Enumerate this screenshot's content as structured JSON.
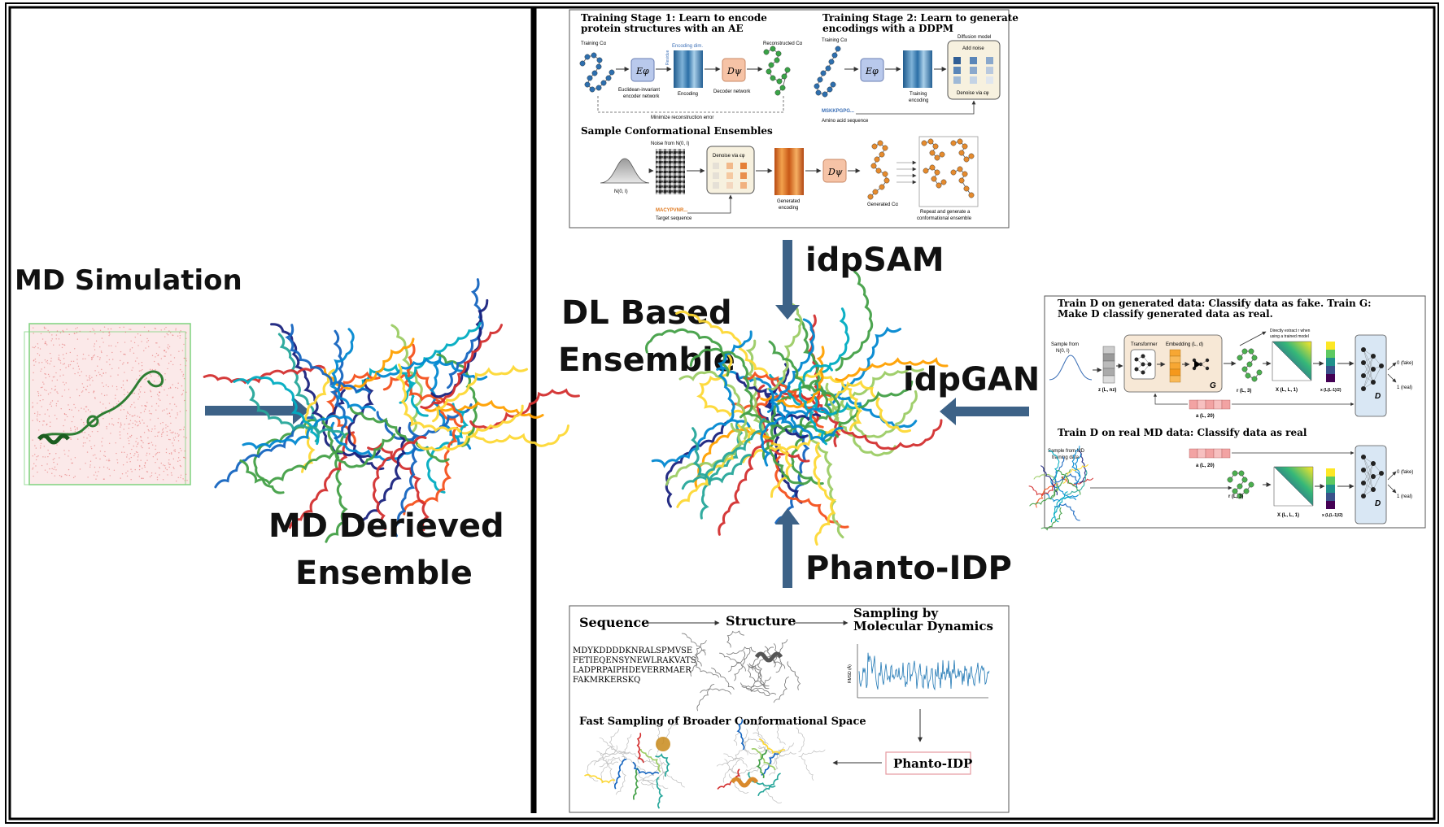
{
  "labels": {
    "md_simulation": "MD Simulation",
    "md_derived_1": "MD Derieved",
    "md_derived_2": "Ensemble",
    "dl_based_1": "DL Based",
    "dl_based_2": "Ensemble",
    "idpsam": "idpSAM",
    "idpgan": "idpGAN",
    "phanto": "Phanto-IDP"
  },
  "idpsam_panel": {
    "stage1_title_1": "Training Stage 1: Learn to encode",
    "stage1_title_2": "protein structures with an AE",
    "stage2_title_1": "Training Stage 2: Learn to generate",
    "stage2_title_2": "encodings with a DDPM",
    "training_ca": "Training Cα",
    "encoding_dim": "Encoding dim.",
    "residue": "Residue",
    "encoder_label": "Euclidean-invariant",
    "encoder_label_2": "encoder network",
    "encoding": "Encoding",
    "decoder_network": "Decoder network",
    "reconstructed_ca": "Reconstructed Cα",
    "min_recon": "Minimize reconstruction error",
    "training_ca_2": "Training Cα",
    "diffusion_model": "Diffusion model",
    "add_noise": "Add noise",
    "denoise_via": "Denoise via ϵφ",
    "training_encoding_1": "Training",
    "training_encoding_2": "encoding",
    "aa_seq_text": "MSKKPGPG...",
    "aa_seq": "Amino acid sequence",
    "sample_title": "Sample Conformational Ensembles",
    "noise_from": "Noise from N(0, I)",
    "normal": "N(0, I)",
    "denoise_via_2": "Denoise via ϵφ",
    "target_seq_text": "MACYPVNR...",
    "target_seq": "Target sequence",
    "gen_encoding_1": "Generated",
    "gen_encoding_2": "encoding",
    "gen_ca": "Generated Cα",
    "repeat_1": "Repeat and generate a",
    "repeat_2": "conformational ensemble",
    "e_phi": "Eφ",
    "d_psi": "Dψ"
  },
  "idpgan_panel": {
    "title1_1": "Train D on generated data: Classify data as fake. Train G:",
    "title1_2": "Make D classify generated data as real.",
    "sample_from_1": "Sample from",
    "sample_from_2": "N(0, I)",
    "transformer": "Transformer",
    "embedding": "Embedding (L, d)",
    "directly_1": "Directly extract r when",
    "directly_2": "using a trained model",
    "g": "G",
    "d": "D",
    "z": "z (L, nz)",
    "r": "r (L, 3)",
    "x": "X (L, L, 1)",
    "xv": "x (L(L-1)/2)",
    "a": "a (L, 20)",
    "fake": "0 (fake)",
    "real": "1 (real)",
    "title2": "Train D on real MD data: Classify data as real",
    "md_sample_1": "Sample from MD",
    "md_sample_2": "training data",
    "a2": "a (L, 20)",
    "r2": "r (L, 3)",
    "x2": "X (L, L, 1)",
    "xv2": "x (L(L-1)/2)",
    "fake2": "0 (fake)",
    "real2": "1 (real)",
    "d2": "D"
  },
  "phanto_panel": {
    "sequence": "Sequence",
    "structure": "Structure",
    "sampling_1": "Sampling by",
    "sampling_2": "Molecular Dynamics",
    "seq1": "MDYKDDDDKNRALSPMVSE",
    "seq2": "FETIEQENSYNEWLRAKVATS",
    "seq3": "LADPRPAIPHDEVERRMAER",
    "seq4": "FAKMRKERSKQ",
    "fast": "Fast Sampling of Broader Conformational Space",
    "box": "Phanto-IDP",
    "yaxis": "RMSD (Å)"
  },
  "colors": {
    "arrow": "#3d6287",
    "border": "#000000",
    "water": "#e36a6a",
    "box_edge": "#7ed37e"
  }
}
